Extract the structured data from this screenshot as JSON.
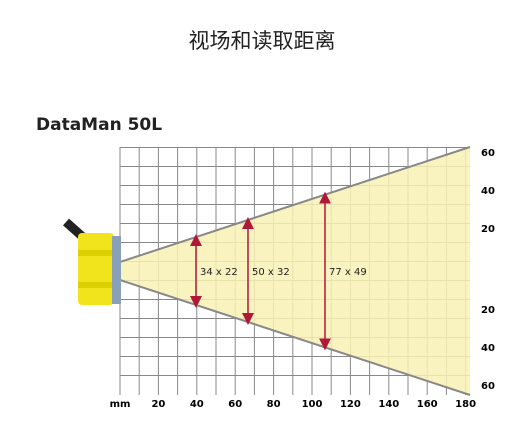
{
  "header": {
    "title": "视场和读取距离"
  },
  "diagram": {
    "model": "DataMan 50L",
    "x_axis": {
      "unit": "mm",
      "ticks": [
        20,
        40,
        60,
        80,
        100,
        120,
        140,
        160,
        180
      ]
    },
    "y_axis": {
      "ticks_upper": [
        60,
        40,
        20
      ],
      "ticks_lower": [
        20,
        40,
        60
      ]
    },
    "measurements": [
      {
        "label": "34 x 22"
      },
      {
        "label": "50 x 32"
      },
      {
        "label": "77 x 49"
      }
    ]
  }
}
